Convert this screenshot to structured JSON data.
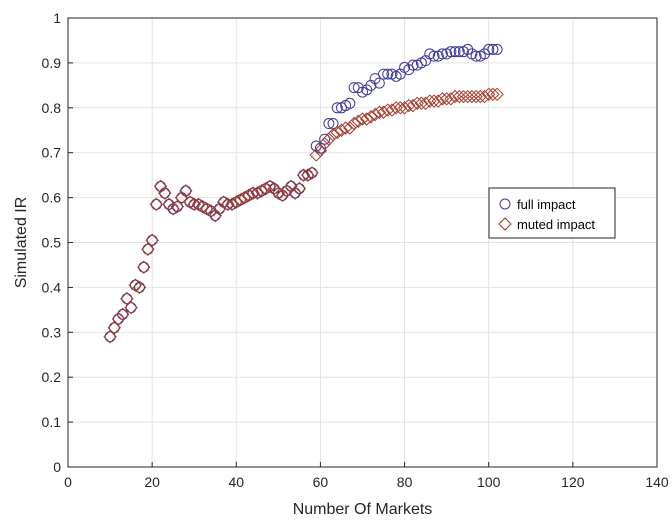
{
  "chart_data": {
    "type": "scatter",
    "xlabel": "Number Of Markets",
    "ylabel": "Simulated IR",
    "xlim": [
      0,
      140
    ],
    "ylim": [
      0,
      1
    ],
    "xticks": [
      "0",
      "20",
      "40",
      "60",
      "80",
      "100",
      "120",
      "140"
    ],
    "yticks": [
      "0",
      "0.1",
      "0.2",
      "0.3",
      "0.4",
      "0.5",
      "0.6",
      "0.7",
      "0.8",
      "0.9",
      "1"
    ],
    "grid": true,
    "legend_position": "right",
    "series": [
      {
        "name": "full impact",
        "marker": "circle",
        "color": "#3b3b9c",
        "x": [
          10,
          11,
          12,
          13,
          14,
          15,
          16,
          17,
          18,
          19,
          20,
          21,
          22,
          23,
          24,
          25,
          26,
          27,
          28,
          29,
          30,
          31,
          32,
          33,
          34,
          35,
          36,
          37,
          38,
          39,
          40,
          41,
          42,
          43,
          44,
          45,
          46,
          47,
          48,
          49,
          50,
          51,
          52,
          53,
          54,
          55,
          56,
          57,
          58,
          59,
          60,
          61,
          62,
          63,
          64,
          65,
          66,
          67,
          68,
          69,
          70,
          71,
          72,
          73,
          74,
          75,
          76,
          77,
          78,
          79,
          80,
          81,
          82,
          83,
          84,
          85,
          86,
          87,
          88,
          89,
          90,
          91,
          92,
          93,
          94,
          95,
          96,
          97,
          98,
          99,
          100,
          101,
          102
        ],
        "y": [
          0.29,
          0.31,
          0.33,
          0.34,
          0.375,
          0.355,
          0.405,
          0.4,
          0.445,
          0.485,
          0.505,
          0.585,
          0.625,
          0.61,
          0.585,
          0.575,
          0.58,
          0.6,
          0.615,
          0.59,
          0.585,
          0.585,
          0.58,
          0.575,
          0.57,
          0.56,
          0.575,
          0.59,
          0.585,
          0.585,
          0.59,
          0.595,
          0.6,
          0.605,
          0.61,
          0.61,
          0.615,
          0.62,
          0.625,
          0.62,
          0.61,
          0.605,
          0.615,
          0.625,
          0.61,
          0.62,
          0.65,
          0.65,
          0.655,
          0.715,
          0.71,
          0.73,
          0.765,
          0.765,
          0.8,
          0.8,
          0.805,
          0.81,
          0.845,
          0.845,
          0.835,
          0.84,
          0.85,
          0.865,
          0.855,
          0.875,
          0.875,
          0.875,
          0.87,
          0.875,
          0.89,
          0.885,
          0.895,
          0.895,
          0.9,
          0.905,
          0.92,
          0.915,
          0.915,
          0.92,
          0.92,
          0.925,
          0.925,
          0.925,
          0.925,
          0.93,
          0.92,
          0.915,
          0.915,
          0.92,
          0.93,
          0.93,
          0.93
        ]
      },
      {
        "name": "muted impact",
        "marker": "diamond",
        "color": "#a33a2a",
        "x": [
          10,
          11,
          12,
          13,
          14,
          15,
          16,
          17,
          18,
          19,
          20,
          21,
          22,
          23,
          24,
          25,
          26,
          27,
          28,
          29,
          30,
          31,
          32,
          33,
          34,
          35,
          36,
          37,
          38,
          39,
          40,
          41,
          42,
          43,
          44,
          45,
          46,
          47,
          48,
          49,
          50,
          51,
          52,
          53,
          54,
          55,
          56,
          57,
          58,
          59,
          60,
          61,
          62,
          63,
          64,
          65,
          66,
          67,
          68,
          69,
          70,
          71,
          72,
          73,
          74,
          75,
          76,
          77,
          78,
          79,
          80,
          81,
          82,
          83,
          84,
          85,
          86,
          87,
          88,
          89,
          90,
          91,
          92,
          93,
          94,
          95,
          96,
          97,
          98,
          99,
          100,
          101,
          102
        ],
        "y": [
          0.29,
          0.31,
          0.33,
          0.34,
          0.375,
          0.355,
          0.405,
          0.4,
          0.445,
          0.485,
          0.505,
          0.585,
          0.625,
          0.61,
          0.585,
          0.575,
          0.58,
          0.6,
          0.615,
          0.59,
          0.585,
          0.585,
          0.58,
          0.575,
          0.57,
          0.56,
          0.575,
          0.59,
          0.585,
          0.585,
          0.59,
          0.595,
          0.6,
          0.605,
          0.61,
          0.61,
          0.615,
          0.62,
          0.625,
          0.62,
          0.61,
          0.605,
          0.615,
          0.625,
          0.61,
          0.62,
          0.65,
          0.65,
          0.655,
          0.695,
          0.705,
          0.72,
          0.73,
          0.74,
          0.745,
          0.75,
          0.755,
          0.755,
          0.765,
          0.77,
          0.775,
          0.775,
          0.78,
          0.785,
          0.79,
          0.79,
          0.795,
          0.795,
          0.8,
          0.8,
          0.8,
          0.805,
          0.805,
          0.81,
          0.81,
          0.81,
          0.815,
          0.815,
          0.815,
          0.82,
          0.82,
          0.82,
          0.825,
          0.825,
          0.825,
          0.825,
          0.825,
          0.825,
          0.825,
          0.825,
          0.83,
          0.83,
          0.83
        ]
      }
    ]
  }
}
